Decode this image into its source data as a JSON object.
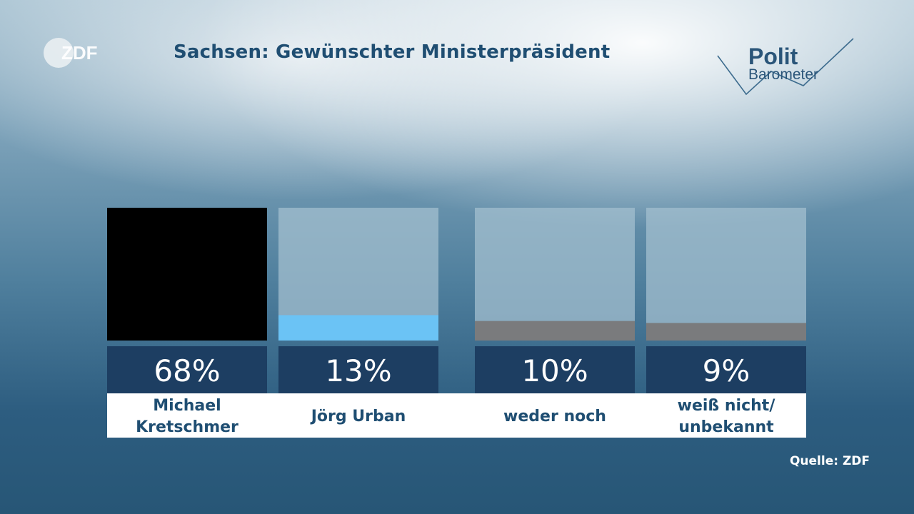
{
  "header": {
    "channel_logo": "ZDF",
    "title": "Sachsen: Gewünschter Ministerpräsident",
    "brand_word_1": "Polit",
    "brand_word_2": "Barometer"
  },
  "footer": {
    "source": "Quelle: ZDF"
  },
  "colors": {
    "title": "#1f4e72",
    "value_box": "#1d3e62",
    "track": "#a3bfcf"
  },
  "chart_data": {
    "type": "bar",
    "title": "Sachsen: Gewünschter Ministerpräsident",
    "categories": [
      [
        "Michael",
        "Kretschmer"
      ],
      [
        "Jörg Urban"
      ],
      [
        "weder noch"
      ],
      [
        "weiß nicht/",
        "unbekannt"
      ]
    ],
    "values": [
      68,
      13,
      10,
      9
    ],
    "value_labels": [
      "68%",
      "13%",
      "10%",
      "9%"
    ],
    "bar_colors": [
      "#000000",
      "#6bc3f5",
      "#7a7b7d",
      "#7a7b7d"
    ],
    "ylim": [
      0,
      68
    ],
    "grid": false
  }
}
